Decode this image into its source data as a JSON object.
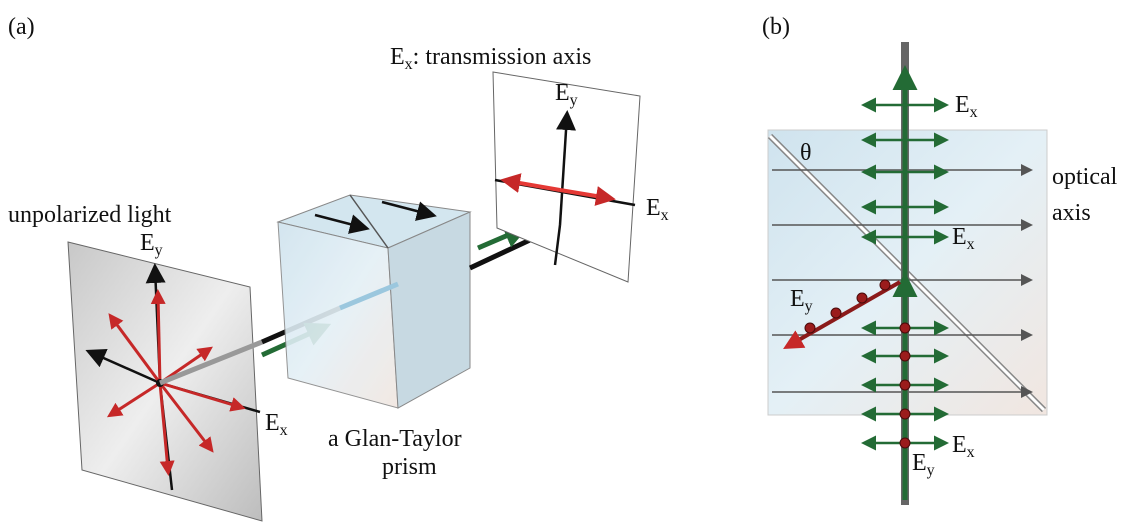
{
  "panel_a": {
    "label": "(a)",
    "title": {
      "symbol": "E",
      "subscript": "x",
      "text": ":  transmission axis"
    },
    "source_label": "unpolarized light",
    "source_axes": {
      "y": {
        "symbol": "E",
        "subscript": "y"
      },
      "x": {
        "symbol": "E",
        "subscript": "x"
      }
    },
    "prism_label": [
      "a Glan-Taylor",
      "prism"
    ],
    "screen_axes": {
      "y": {
        "symbol": "E",
        "subscript": "y"
      },
      "x": {
        "symbol": "E",
        "subscript": "x"
      }
    }
  },
  "panel_b": {
    "label": "(b)",
    "angle": "θ",
    "axis_label": [
      "optical",
      "axis"
    ],
    "field_labels": [
      {
        "symbol": "E",
        "subscript": "x"
      },
      {
        "symbol": "E",
        "subscript": "x"
      },
      {
        "symbol": "E",
        "subscript": "y"
      },
      {
        "symbol": "E",
        "subscript": "x"
      },
      {
        "symbol": "E",
        "subscript": "y"
      }
    ]
  }
}
